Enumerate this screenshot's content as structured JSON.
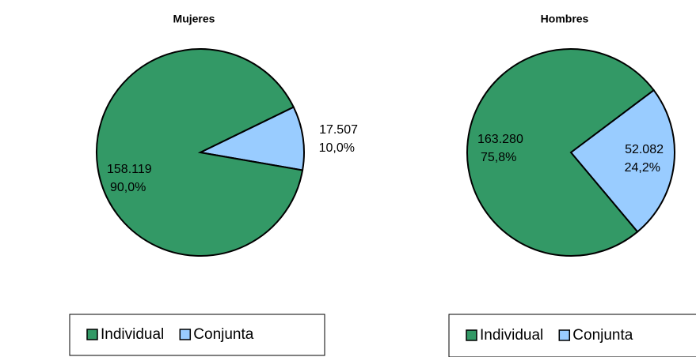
{
  "chart_data": [
    {
      "type": "pie",
      "title": "Mujeres",
      "categories": [
        "Individual",
        "Conjunta"
      ],
      "values": [
        158119,
        17507
      ],
      "value_labels": [
        "158.119",
        "17.507"
      ],
      "percent_labels": [
        "90,0%",
        "10,0%"
      ],
      "colors": [
        "#339966",
        "#99ccff"
      ],
      "legend": "bottom"
    },
    {
      "type": "pie",
      "title": "Hombres",
      "categories": [
        "Individual",
        "Conjunta"
      ],
      "values": [
        163280,
        52082
      ],
      "value_labels": [
        "163.280",
        "52.082"
      ],
      "percent_labels": [
        "75,8%",
        "24,2%"
      ],
      "colors": [
        "#339966",
        "#99ccff"
      ],
      "legend": "bottom"
    }
  ]
}
